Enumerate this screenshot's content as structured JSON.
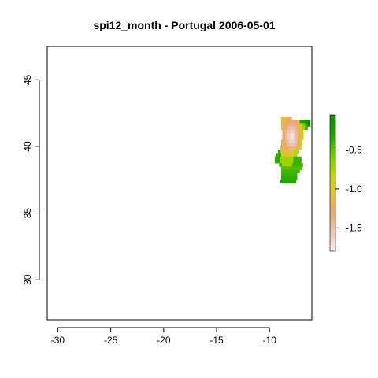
{
  "title": "spi12_month - Portugal 2006-05-01",
  "map": {
    "x_range": [
      -31,
      -6
    ],
    "y_range": [
      27,
      47.5
    ],
    "x_ticks": [
      {
        "value": -30,
        "label": "-30"
      },
      {
        "value": -25,
        "label": "-25"
      },
      {
        "value": -20,
        "label": "-20"
      },
      {
        "value": -15,
        "label": "-15"
      },
      {
        "value": -10,
        "label": "-10"
      }
    ],
    "y_ticks": [
      {
        "value": 30,
        "label": "30"
      },
      {
        "value": 35,
        "label": "35"
      },
      {
        "value": 40,
        "label": "40"
      },
      {
        "value": 45,
        "label": "45"
      }
    ],
    "cell_size_deg": 0.25,
    "color_ramp": [
      "#f2f2f2",
      "#ecc5b1",
      "#e8a76e",
      "#e5c137",
      "#bbd800",
      "#6ecc00",
      "#19a400",
      "#0a8f00"
    ],
    "legend": {
      "range": [
        -1.8,
        -0.05
      ],
      "ticks": [
        {
          "value": -0.5,
          "label": "-0.5"
        },
        {
          "value": -1.0,
          "label": "-1.0"
        },
        {
          "value": -1.5,
          "label": "-1.5"
        }
      ]
    }
  }
}
